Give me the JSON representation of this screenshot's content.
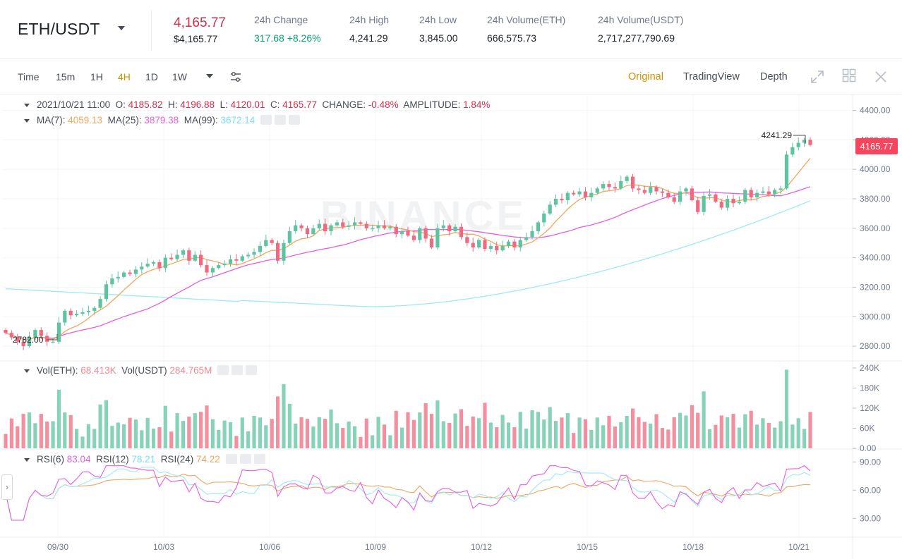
{
  "header": {
    "pair": "ETH/USDT",
    "last_price": "4,165.77",
    "fiat_price": "$4,165.77",
    "stats": [
      {
        "label": "24h Change",
        "value": "317.68 +8.26%",
        "positive": true
      },
      {
        "label": "24h High",
        "value": "4,241.29"
      },
      {
        "label": "24h Low",
        "value": "3,845.00"
      },
      {
        "label": "24h Volume(ETH)",
        "value": "666,575.73"
      },
      {
        "label": "24h Volume(USDT)",
        "value": "2,717,277,790.69"
      }
    ]
  },
  "toolbar": {
    "intervals": [
      "Time",
      "15m",
      "1H",
      "4H",
      "1D",
      "1W"
    ],
    "active_interval": "4H",
    "views": [
      "Original",
      "TradingView",
      "Depth"
    ],
    "active_view": "Original"
  },
  "legend": {
    "ohlc": {
      "time": "2021/10/21 11:00",
      "o_label": "O:",
      "o": "4185.82",
      "h_label": "H:",
      "h": "4196.88",
      "l_label": "L:",
      "l": "4120.01",
      "c_label": "C:",
      "c": "4165.77",
      "change_label": "CHANGE:",
      "change": "-0.48%",
      "amp_label": "AMPLITUDE:",
      "amp": "1.84%"
    },
    "ma": {
      "ma7_label": "MA(7):",
      "ma7": "4059.13",
      "ma25_label": "MA(25):",
      "ma25": "3879.38",
      "ma99_label": "MA(99):",
      "ma99": "3672.14"
    },
    "vol": {
      "eth_label": "Vol(ETH):",
      "eth": "68.413K",
      "usdt_label": "Vol(USDT)",
      "usdt": "284.765M"
    },
    "rsi": {
      "r6_label": "RSI(6)",
      "r6": "83.04",
      "r12_label": "RSI(12)",
      "r12": "78.21",
      "r24_label": "RSI(24)",
      "r24": "74.22"
    }
  },
  "chart": {
    "current_price_tag": "4165.77",
    "high_marker": "4241.29",
    "low_marker": "2782.00",
    "watermark": "BINANCE",
    "price_ticks": [
      "4400.00",
      "4200.00",
      "4000.00",
      "3800.00",
      "3600.00",
      "3400.00",
      "3200.00",
      "3000.00",
      "2800.00"
    ],
    "vol_ticks": [
      "240K",
      "180K",
      "120K",
      "60K",
      "0.00"
    ],
    "rsi_ticks": [
      "90.00",
      "60.00",
      "30.00"
    ],
    "date_ticks": [
      "09/30",
      "10/03",
      "10/06",
      "10/09",
      "10/12",
      "10/15",
      "10/18",
      "10/21"
    ]
  },
  "chart_data": {
    "type": "candlestick",
    "symbol": "ETH/USDT",
    "interval": "4H",
    "price_range": [
      2700,
      4460
    ],
    "close_series_approx": [
      2890,
      2860,
      2830,
      2800,
      2860,
      2910,
      2870,
      2830,
      2830,
      2960,
      3040,
      3010,
      3020,
      3030,
      3040,
      3060,
      3120,
      3220,
      3260,
      3270,
      3300,
      3290,
      3320,
      3340,
      3360,
      3370,
      3330,
      3400,
      3390,
      3420,
      3450,
      3380,
      3420,
      3350,
      3300,
      3330,
      3350,
      3360,
      3390,
      3380,
      3410,
      3420,
      3440,
      3480,
      3520,
      3500,
      3380,
      3500,
      3580,
      3620,
      3600,
      3560,
      3600,
      3630,
      3580,
      3620,
      3640,
      3610,
      3620,
      3640,
      3630,
      3600,
      3600,
      3620,
      3600,
      3610,
      3560,
      3580,
      3550,
      3520,
      3600,
      3530,
      3470,
      3600,
      3620,
      3580,
      3610,
      3540,
      3500,
      3470,
      3520,
      3460,
      3480,
      3450,
      3480,
      3510,
      3470,
      3520,
      3540,
      3580,
      3640,
      3700,
      3760,
      3800,
      3790,
      3840,
      3830,
      3850,
      3810,
      3840,
      3870,
      3900,
      3880,
      3870,
      3920,
      3950,
      3870,
      3860,
      3840,
      3880,
      3850,
      3840,
      3810,
      3780,
      3850,
      3870,
      3790,
      3710,
      3820,
      3830,
      3780,
      3740,
      3800,
      3770,
      3780,
      3860,
      3810,
      3840,
      3850,
      3830,
      3860,
      3870,
      4100,
      4150,
      4180,
      4200,
      4165
    ],
    "ma_series": [
      {
        "name": "MA(7)",
        "last": 4059.13
      },
      {
        "name": "MA(25)",
        "last": 3879.38
      },
      {
        "name": "MA(99)",
        "last": 3672.14
      }
    ],
    "volume_range": [
      0,
      240000
    ],
    "rsi": {
      "RSI(6)": 83.04,
      "RSI(12)": 78.21,
      "RSI(24)": 74.22
    }
  },
  "colors": {
    "up": "#5ec4a0",
    "down": "#f0697f",
    "ma7": "#f0a65d",
    "ma25": "#e65ee0",
    "ma99": "#9ee9f2",
    "accent": "#c99400"
  }
}
